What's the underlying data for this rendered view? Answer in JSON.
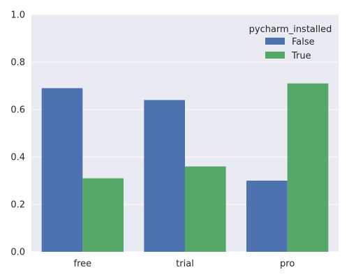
{
  "chart_data": {
    "type": "bar",
    "categories": [
      "free",
      "trial",
      "pro"
    ],
    "series": [
      {
        "name": "False",
        "values": [
          0.69,
          0.64,
          0.3
        ],
        "color": "#4c72b0"
      },
      {
        "name": "True",
        "values": [
          0.31,
          0.36,
          0.71
        ],
        "color": "#55a868"
      }
    ],
    "ylim": [
      0,
      1.0
    ],
    "yticks": [
      "0.0",
      "0.2",
      "0.4",
      "0.6",
      "0.8",
      "1.0"
    ],
    "xlabel": "",
    "ylabel": "",
    "grid": true,
    "legend": {
      "title": "pycharm_installed",
      "placement": "top-right"
    },
    "colors": {
      "background": "#eaeaf2",
      "grid": "#ffffff"
    }
  }
}
